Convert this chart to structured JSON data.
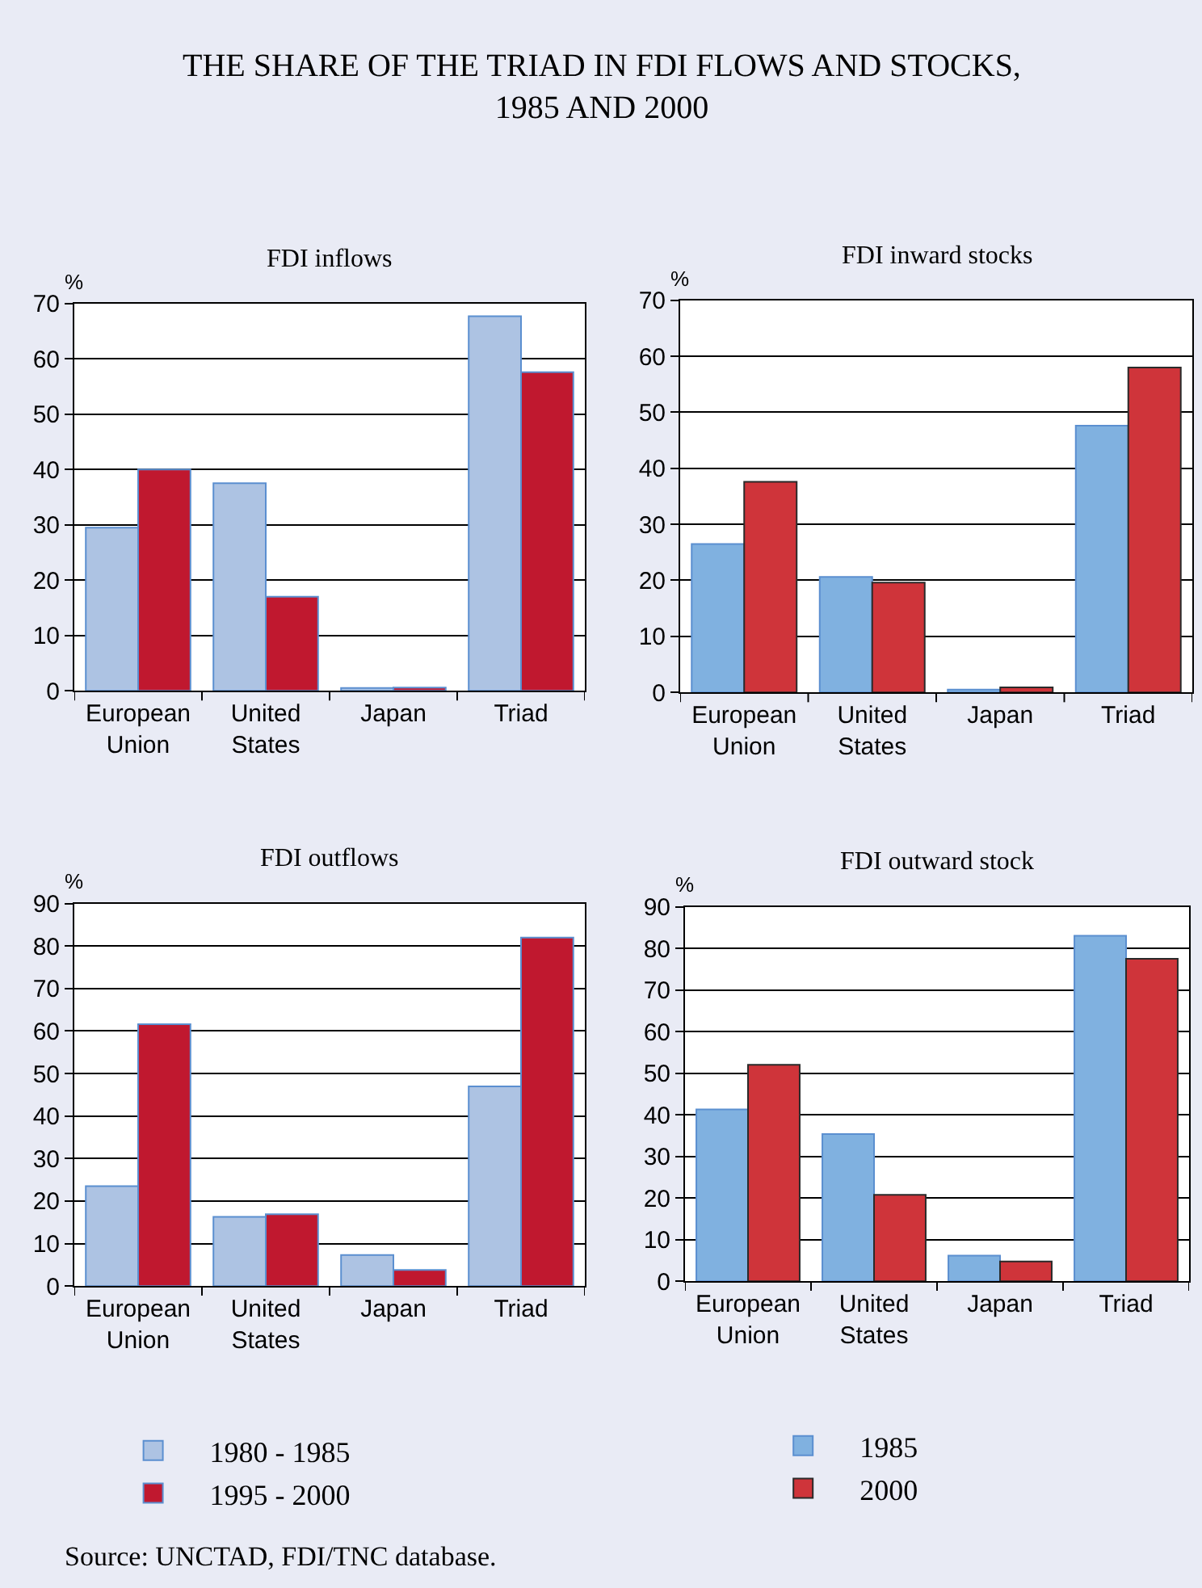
{
  "chart_data": [
    {
      "type": "other",
      "title": "THE SHARE OF THE TRIAD IN FDI FLOWS AND STOCKS, 1985 AND 2000",
      "annotations": [
        "Source: UNCTAD, FDI/TNC database."
      ]
    },
    {
      "type": "bar",
      "title": "FDI inflows",
      "ylabel": "%",
      "categories": [
        "European Union",
        "United States",
        "Japan",
        "Triad"
      ],
      "series": [
        {
          "color": "#adc3e3",
          "values": [
            29.5,
            37.5,
            0.5,
            67.7
          ]
        },
        {
          "color": "#c0182f",
          "values": [
            40,
            17,
            0.6,
            57.6
          ]
        }
      ],
      "ylim": [
        0,
        70
      ],
      "yticks": [
        0,
        10,
        20,
        30,
        40,
        50,
        60,
        70
      ],
      "grid": "y"
    },
    {
      "type": "bar",
      "title": "FDI inward stocks",
      "ylabel": "%",
      "categories": [
        "European Union",
        "United States",
        "Japan",
        "Triad"
      ],
      "series": [
        {
          "color": "#80b1e0",
          "values": [
            26.5,
            20.6,
            0.5,
            47.6
          ]
        },
        {
          "color": "#cf343a",
          "values": [
            37.6,
            19.6,
            0.9,
            58
          ]
        }
      ],
      "ylim": [
        0,
        70
      ],
      "yticks": [
        0,
        10,
        20,
        30,
        40,
        50,
        60,
        70
      ],
      "grid": "y"
    },
    {
      "type": "bar",
      "title": "FDI outflows",
      "ylabel": "%",
      "categories": [
        "European Union",
        "United States",
        "Japan",
        "Triad"
      ],
      "series": [
        {
          "name": "1980 - 1985",
          "color": "#adc3e3",
          "values": [
            23.5,
            16.3,
            7.3,
            47
          ]
        },
        {
          "name": "1995 - 2000",
          "color": "#c0182f",
          "values": [
            61.6,
            16.9,
            3.8,
            82
          ]
        }
      ],
      "ylim": [
        0,
        90
      ],
      "yticks": [
        0,
        10,
        20,
        30,
        40,
        50,
        60,
        70,
        80,
        90
      ],
      "grid": "y",
      "legend": "bottom"
    },
    {
      "type": "bar",
      "title": "FDI outward stock",
      "ylabel": "%",
      "categories": [
        "European Union",
        "United States",
        "Japan",
        "Triad"
      ],
      "series": [
        {
          "name": "1985",
          "color": "#80b1e0",
          "values": [
            41.3,
            35.4,
            6.2,
            83
          ]
        },
        {
          "name": "2000",
          "color": "#cf343a",
          "values": [
            52,
            20.8,
            4.8,
            77.5
          ]
        }
      ],
      "ylim": [
        0,
        90
      ],
      "yticks": [
        0,
        10,
        20,
        30,
        40,
        50,
        60,
        70,
        80,
        90
      ],
      "grid": "y",
      "legend": "bottom"
    }
  ]
}
